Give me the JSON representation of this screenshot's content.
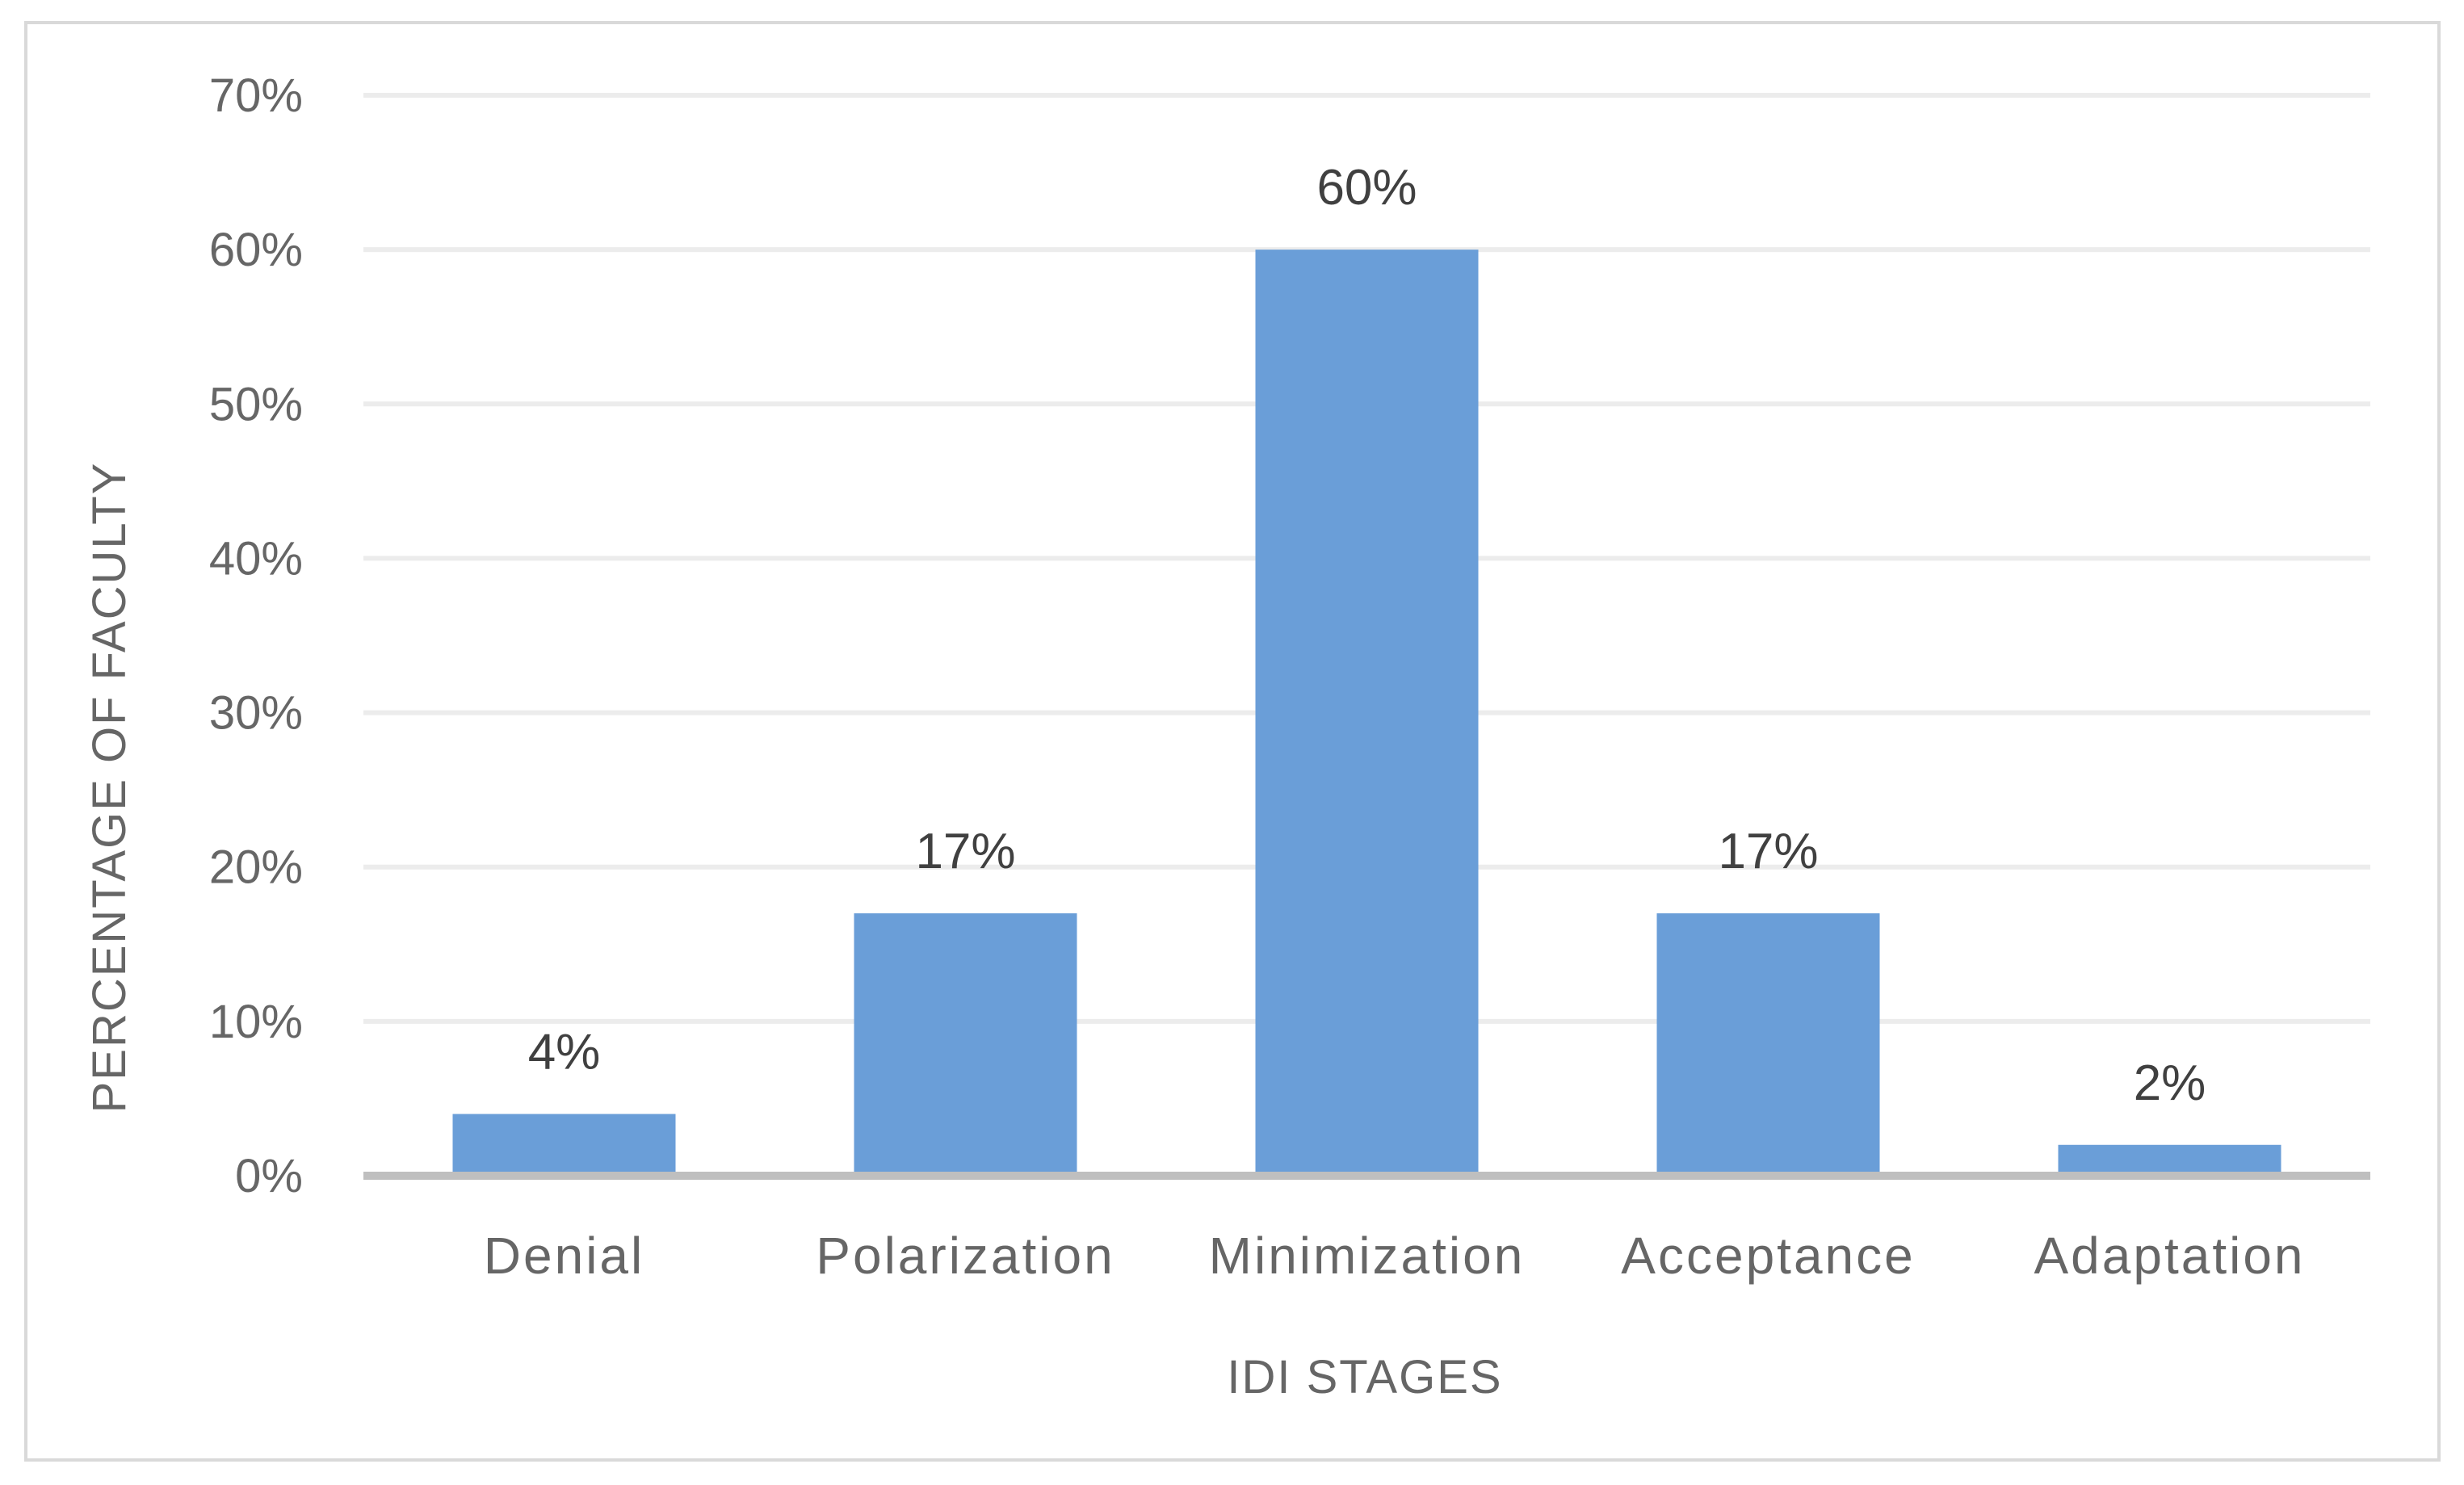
{
  "chart_data": {
    "type": "bar",
    "title": "",
    "xlabel": "IDI STAGES",
    "ylabel": "PERCENTAGE OF FACULTY",
    "categories": [
      "Denial",
      "Polarization",
      "Minimization",
      "Acceptance",
      "Adaptation"
    ],
    "values": [
      4,
      17,
      60,
      17,
      2
    ],
    "data_labels": [
      "4%",
      "17%",
      "60%",
      "17%",
      "2%"
    ],
    "ylim": [
      0,
      70
    ],
    "yticks": [
      0,
      10,
      20,
      30,
      40,
      50,
      60,
      70
    ],
    "ytick_labels": [
      "0%",
      "10%",
      "20%",
      "30%",
      "40%",
      "50%",
      "60%",
      "70%"
    ],
    "grid": true,
    "legend": "none",
    "bar_color": "#6a9ed8"
  }
}
